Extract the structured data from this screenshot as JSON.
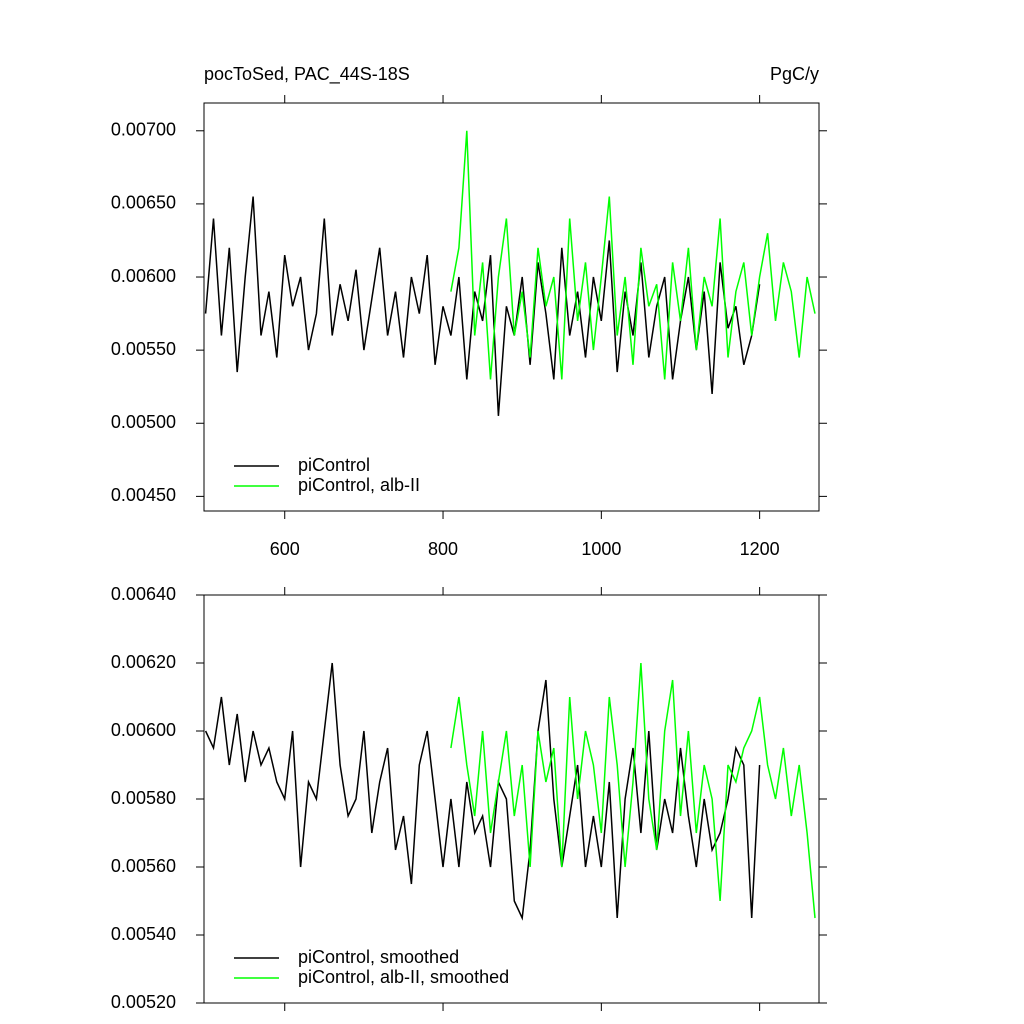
{
  "chart_data": [
    {
      "type": "line",
      "title": "pocToSed, PAC_44S-18S",
      "units": "PgC/y",
      "xlim": [
        498,
        1275
      ],
      "xticks": [
        600,
        800,
        1000,
        1200
      ],
      "xtick_labels": true,
      "ylim": [
        0.0044,
        0.00719
      ],
      "yticks": [
        {
          "value": 0.0045,
          "label": "0.00450"
        },
        {
          "value": 0.005,
          "label": "0.00500"
        },
        {
          "value": 0.0055,
          "label": "0.00550"
        },
        {
          "value": 0.006,
          "label": "0.00600"
        },
        {
          "value": 0.0065,
          "label": "0.00650"
        },
        {
          "value": 0.007,
          "label": "0.00700"
        }
      ],
      "legend": "lower left",
      "series": [
        {
          "name": "piControl",
          "color": "#000000",
          "x": [
            500,
            510,
            520,
            530,
            540,
            550,
            560,
            570,
            580,
            590,
            600,
            610,
            620,
            630,
            640,
            650,
            660,
            670,
            680,
            690,
            700,
            710,
            720,
            730,
            740,
            750,
            760,
            770,
            780,
            790,
            800,
            810,
            820,
            830,
            840,
            850,
            860,
            870,
            880,
            890,
            900,
            910,
            920,
            930,
            940,
            950,
            960,
            970,
            980,
            990,
            1000,
            1010,
            1020,
            1030,
            1040,
            1050,
            1060,
            1070,
            1080,
            1090,
            1100,
            1110,
            1120,
            1130,
            1140,
            1150,
            1160,
            1170,
            1180,
            1190,
            1200
          ],
          "values": [
            0.00575,
            0.0064,
            0.0056,
            0.0062,
            0.00535,
            0.006,
            0.00655,
            0.0056,
            0.0059,
            0.00545,
            0.00615,
            0.0058,
            0.006,
            0.0055,
            0.00575,
            0.0064,
            0.0056,
            0.00595,
            0.0057,
            0.00605,
            0.0055,
            0.00585,
            0.0062,
            0.0056,
            0.0059,
            0.00545,
            0.006,
            0.00575,
            0.00615,
            0.0054,
            0.0058,
            0.0056,
            0.006,
            0.0053,
            0.0059,
            0.0057,
            0.00615,
            0.00505,
            0.0058,
            0.0056,
            0.006,
            0.0054,
            0.0061,
            0.00575,
            0.0053,
            0.0062,
            0.0056,
            0.0059,
            0.00545,
            0.006,
            0.0057,
            0.00625,
            0.00535,
            0.0059,
            0.0056,
            0.0061,
            0.00545,
            0.0058,
            0.006,
            0.0053,
            0.0057,
            0.006,
            0.0055,
            0.0059,
            0.0052,
            0.0061,
            0.00565,
            0.0058,
            0.0054,
            0.0056,
            0.00595
          ]
        },
        {
          "name": "piControl, alb-II",
          "color": "#00ff00",
          "x": [
            810,
            820,
            830,
            840,
            850,
            860,
            870,
            880,
            890,
            900,
            910,
            920,
            930,
            940,
            950,
            960,
            970,
            980,
            990,
            1000,
            1010,
            1020,
            1030,
            1040,
            1050,
            1060,
            1070,
            1080,
            1090,
            1100,
            1110,
            1120,
            1130,
            1140,
            1150,
            1160,
            1170,
            1180,
            1190,
            1200,
            1210,
            1220,
            1230,
            1240,
            1250,
            1260,
            1270
          ],
          "values": [
            0.0059,
            0.0062,
            0.007,
            0.0056,
            0.0061,
            0.0053,
            0.006,
            0.0064,
            0.0056,
            0.0059,
            0.00545,
            0.0062,
            0.0058,
            0.006,
            0.0053,
            0.0064,
            0.0057,
            0.0061,
            0.0055,
            0.006,
            0.00655,
            0.0056,
            0.006,
            0.0054,
            0.0062,
            0.0058,
            0.00595,
            0.0053,
            0.0061,
            0.0057,
            0.0062,
            0.0055,
            0.006,
            0.0058,
            0.0064,
            0.00545,
            0.0059,
            0.0061,
            0.0056,
            0.006,
            0.0063,
            0.0057,
            0.0061,
            0.0059,
            0.00545,
            0.006,
            0.00575
          ]
        }
      ]
    },
    {
      "type": "line",
      "xlim": [
        498,
        1275
      ],
      "xticks": [
        600,
        800,
        1000,
        1200
      ],
      "xtick_labels": false,
      "ylim": [
        0.0052,
        0.0064
      ],
      "yticks": [
        {
          "value": 0.0052,
          "label": "0.00520"
        },
        {
          "value": 0.0054,
          "label": "0.00540"
        },
        {
          "value": 0.0056,
          "label": "0.00560"
        },
        {
          "value": 0.0058,
          "label": "0.00580"
        },
        {
          "value": 0.006,
          "label": "0.00600"
        },
        {
          "value": 0.0062,
          "label": "0.00620"
        },
        {
          "value": 0.0064,
          "label": "0.00640"
        }
      ],
      "legend": "lower left",
      "series": [
        {
          "name": "piControl, smoothed",
          "color": "#000000",
          "x": [
            500,
            510,
            520,
            530,
            540,
            550,
            560,
            570,
            580,
            590,
            600,
            610,
            620,
            630,
            640,
            650,
            660,
            670,
            680,
            690,
            700,
            710,
            720,
            730,
            740,
            750,
            760,
            770,
            780,
            790,
            800,
            810,
            820,
            830,
            840,
            850,
            860,
            870,
            880,
            890,
            900,
            910,
            920,
            930,
            940,
            950,
            960,
            970,
            980,
            990,
            1000,
            1010,
            1020,
            1030,
            1040,
            1050,
            1060,
            1070,
            1080,
            1090,
            1100,
            1110,
            1120,
            1130,
            1140,
            1150,
            1160,
            1170,
            1180,
            1190,
            1200
          ],
          "values": [
            0.006,
            0.00595,
            0.0061,
            0.0059,
            0.00605,
            0.00585,
            0.006,
            0.0059,
            0.00595,
            0.00585,
            0.0058,
            0.006,
            0.0056,
            0.00585,
            0.0058,
            0.006,
            0.0062,
            0.0059,
            0.00575,
            0.0058,
            0.006,
            0.0057,
            0.00585,
            0.00595,
            0.00565,
            0.00575,
            0.00555,
            0.0059,
            0.006,
            0.0058,
            0.0056,
            0.0058,
            0.0056,
            0.00585,
            0.0057,
            0.00575,
            0.0056,
            0.00585,
            0.0058,
            0.0055,
            0.00545,
            0.00565,
            0.006,
            0.00615,
            0.0058,
            0.0056,
            0.00575,
            0.0059,
            0.0056,
            0.00575,
            0.0056,
            0.00585,
            0.00545,
            0.0058,
            0.00595,
            0.0057,
            0.006,
            0.00565,
            0.0058,
            0.0057,
            0.00595,
            0.00575,
            0.0056,
            0.0058,
            0.00565,
            0.0057,
            0.0058,
            0.00595,
            0.0059,
            0.00545,
            0.0059
          ]
        },
        {
          "name": "piControl, alb-II, smoothed",
          "color": "#00ff00",
          "x": [
            810,
            820,
            830,
            840,
            850,
            860,
            870,
            880,
            890,
            900,
            910,
            920,
            930,
            940,
            950,
            960,
            970,
            980,
            990,
            1000,
            1010,
            1020,
            1030,
            1040,
            1050,
            1060,
            1070,
            1080,
            1090,
            1100,
            1110,
            1120,
            1130,
            1140,
            1150,
            1160,
            1170,
            1180,
            1190,
            1200,
            1210,
            1220,
            1230,
            1240,
            1250,
            1260,
            1270
          ],
          "values": [
            0.00595,
            0.0061,
            0.0059,
            0.00575,
            0.006,
            0.0057,
            0.00585,
            0.006,
            0.00575,
            0.0059,
            0.0056,
            0.006,
            0.00585,
            0.00595,
            0.0056,
            0.0061,
            0.0058,
            0.006,
            0.0059,
            0.0057,
            0.0061,
            0.0059,
            0.0056,
            0.00585,
            0.0062,
            0.0058,
            0.00565,
            0.006,
            0.00615,
            0.00575,
            0.006,
            0.0057,
            0.0059,
            0.0058,
            0.0055,
            0.0059,
            0.00585,
            0.00595,
            0.006,
            0.0061,
            0.0059,
            0.0058,
            0.00595,
            0.00575,
            0.0059,
            0.0057,
            0.00545
          ]
        }
      ]
    }
  ]
}
